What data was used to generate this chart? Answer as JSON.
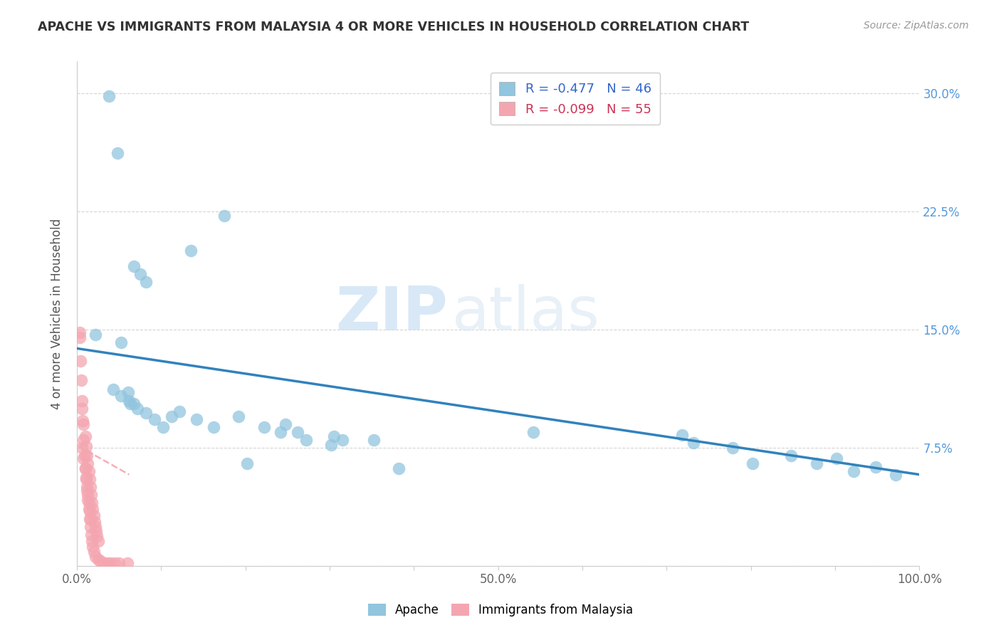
{
  "title": "APACHE VS IMMIGRANTS FROM MALAYSIA 4 OR MORE VEHICLES IN HOUSEHOLD CORRELATION CHART",
  "source": "Source: ZipAtlas.com",
  "ylabel": "4 or more Vehicles in Household",
  "xlim": [
    0,
    1.0
  ],
  "ylim": [
    0,
    0.32
  ],
  "xtick_positions": [
    0.0,
    0.1,
    0.2,
    0.3,
    0.4,
    0.5,
    0.6,
    0.7,
    0.8,
    0.9,
    1.0
  ],
  "xticklabels": [
    "0.0%",
    "",
    "",
    "",
    "",
    "50.0%",
    "",
    "",
    "",
    "",
    "100.0%"
  ],
  "yticks_right_labels": [
    "30.0%",
    "22.5%",
    "15.0%",
    "7.5%"
  ],
  "yticks_right_vals": [
    0.3,
    0.225,
    0.15,
    0.075
  ],
  "apache_R": "-0.477",
  "apache_N": "46",
  "malaysia_R": "-0.099",
  "malaysia_N": "55",
  "apache_color": "#92c5de",
  "apache_line_color": "#3182bd",
  "malaysia_color": "#f4a6b0",
  "malaysia_line_color": "#d46b7a",
  "apache_scatter_x": [
    0.022,
    0.048,
    0.135,
    0.175,
    0.068,
    0.075,
    0.082,
    0.043,
    0.052,
    0.062,
    0.068,
    0.122,
    0.192,
    0.248,
    0.262,
    0.305,
    0.315,
    0.352,
    0.542,
    0.718,
    0.732,
    0.778,
    0.802,
    0.848,
    0.878,
    0.902,
    0.922,
    0.948,
    0.972,
    0.038,
    0.052,
    0.061,
    0.063,
    0.072,
    0.082,
    0.092,
    0.102,
    0.112,
    0.142,
    0.162,
    0.202,
    0.222,
    0.242,
    0.272,
    0.302,
    0.382
  ],
  "apache_scatter_y": [
    0.147,
    0.262,
    0.2,
    0.222,
    0.19,
    0.185,
    0.18,
    0.112,
    0.108,
    0.105,
    0.103,
    0.098,
    0.095,
    0.09,
    0.085,
    0.082,
    0.08,
    0.08,
    0.085,
    0.083,
    0.078,
    0.075,
    0.065,
    0.07,
    0.065,
    0.068,
    0.06,
    0.063,
    0.058,
    0.298,
    0.142,
    0.11,
    0.103,
    0.1,
    0.097,
    0.093,
    0.088,
    0.095,
    0.093,
    0.088,
    0.065,
    0.088,
    0.085,
    0.08,
    0.077,
    0.062
  ],
  "malaysia_scatter_x": [
    0.003,
    0.006,
    0.008,
    0.01,
    0.011,
    0.012,
    0.013,
    0.014,
    0.015,
    0.016,
    0.017,
    0.018,
    0.019,
    0.02,
    0.021,
    0.022,
    0.023,
    0.024,
    0.025,
    0.006,
    0.008,
    0.01,
    0.011,
    0.012,
    0.013,
    0.014,
    0.015,
    0.016,
    0.003,
    0.004,
    0.005,
    0.006,
    0.007,
    0.008,
    0.009,
    0.01,
    0.011,
    0.012,
    0.013,
    0.014,
    0.015,
    0.016,
    0.017,
    0.018,
    0.019,
    0.02,
    0.022,
    0.025,
    0.028,
    0.032,
    0.036,
    0.04,
    0.045,
    0.05,
    0.06
  ],
  "malaysia_scatter_y": [
    0.148,
    0.1,
    0.09,
    0.082,
    0.076,
    0.07,
    0.065,
    0.06,
    0.055,
    0.05,
    0.045,
    0.04,
    0.036,
    0.032,
    0.028,
    0.025,
    0.022,
    0.019,
    0.016,
    0.075,
    0.068,
    0.062,
    0.056,
    0.05,
    0.045,
    0.04,
    0.035,
    0.03,
    0.145,
    0.13,
    0.118,
    0.105,
    0.092,
    0.08,
    0.07,
    0.062,
    0.055,
    0.048,
    0.042,
    0.036,
    0.03,
    0.025,
    0.02,
    0.016,
    0.012,
    0.009,
    0.006,
    0.004,
    0.003,
    0.002,
    0.002,
    0.002,
    0.002,
    0.002,
    0.002
  ],
  "apache_trendline_x": [
    0.0,
    1.0
  ],
  "apache_trendline_y": [
    0.138,
    0.058
  ],
  "malaysia_trendline_x": [
    0.002,
    0.062
  ],
  "malaysia_trendline_y": [
    0.076,
    0.058
  ],
  "watermark_zip": "ZIP",
  "watermark_atlas": "atlas",
  "background_color": "#ffffff",
  "grid_color": "#d0d0d0"
}
